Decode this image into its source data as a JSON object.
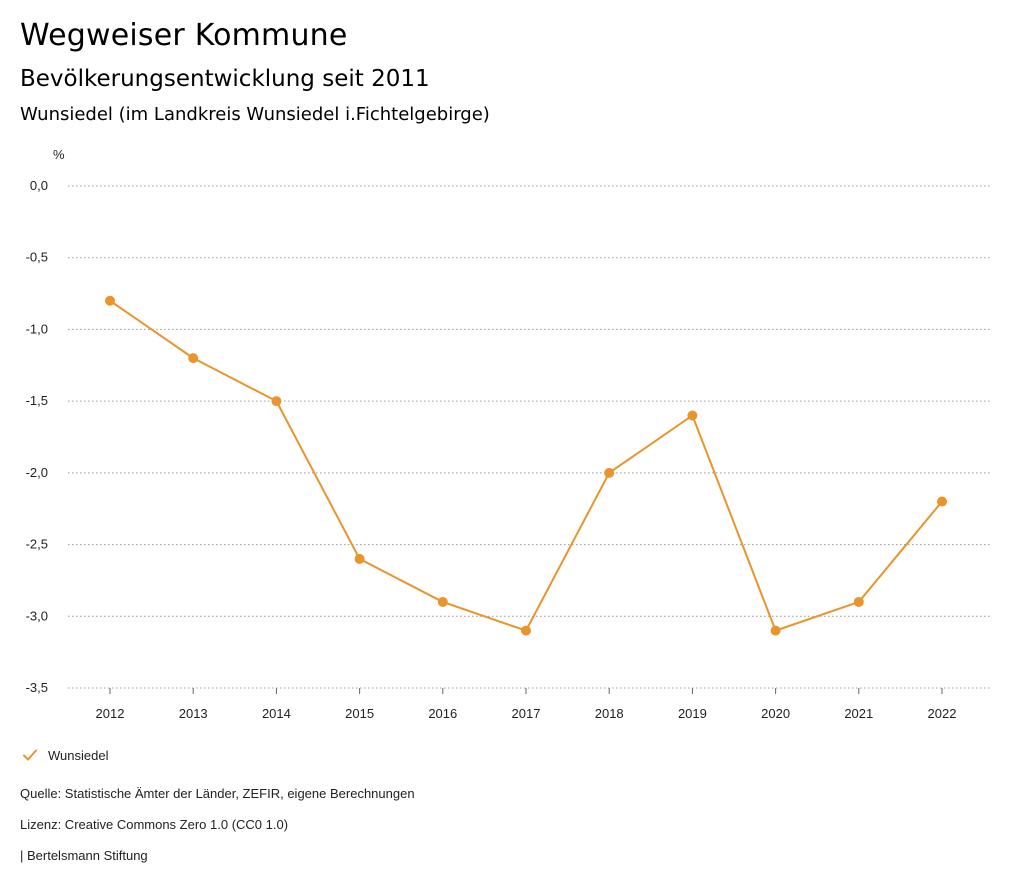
{
  "header": {
    "title": "Wegweiser Kommune",
    "subtitle": "Bevölkerungsentwicklung seit 2011",
    "region": "Wunsiedel (im Landkreis Wunsiedel i.Fichtelgebirge)"
  },
  "chart_data": {
    "type": "line",
    "title": "Bevölkerungsentwicklung seit 2011",
    "subtitle": "Wunsiedel (im Landkreis Wunsiedel i.Fichtelgebirge)",
    "ylabel": "%",
    "xlabel": "",
    "x": [
      "2012",
      "2013",
      "2014",
      "2015",
      "2016",
      "2017",
      "2018",
      "2019",
      "2020",
      "2021",
      "2022"
    ],
    "y_ticks": [
      "0,0",
      "-0,5",
      "-1,0",
      "-1,5",
      "-2,0",
      "-2,5",
      "-3,0",
      "-3,5"
    ],
    "ylim": [
      -3.5,
      0.0
    ],
    "grid": true,
    "series": [
      {
        "name": "Wunsiedel",
        "color": "#e8952d",
        "values": [
          -0.8,
          -1.2,
          -1.5,
          -2.6,
          -2.9,
          -3.1,
          -2.0,
          -1.6,
          -3.1,
          -2.9,
          -2.2
        ]
      }
    ],
    "legend": "bottom-left"
  },
  "legend": {
    "label": "Wunsiedel",
    "icon": "check-icon",
    "color": "#e8952d"
  },
  "footer": {
    "source": "Quelle: Statistische Ämter der Länder, ZEFIR, eigene Berechnungen",
    "license": "Lizenz: Creative Commons Zero 1.0 (CC0 1.0)",
    "publisher": "| Bertelsmann Stiftung"
  }
}
